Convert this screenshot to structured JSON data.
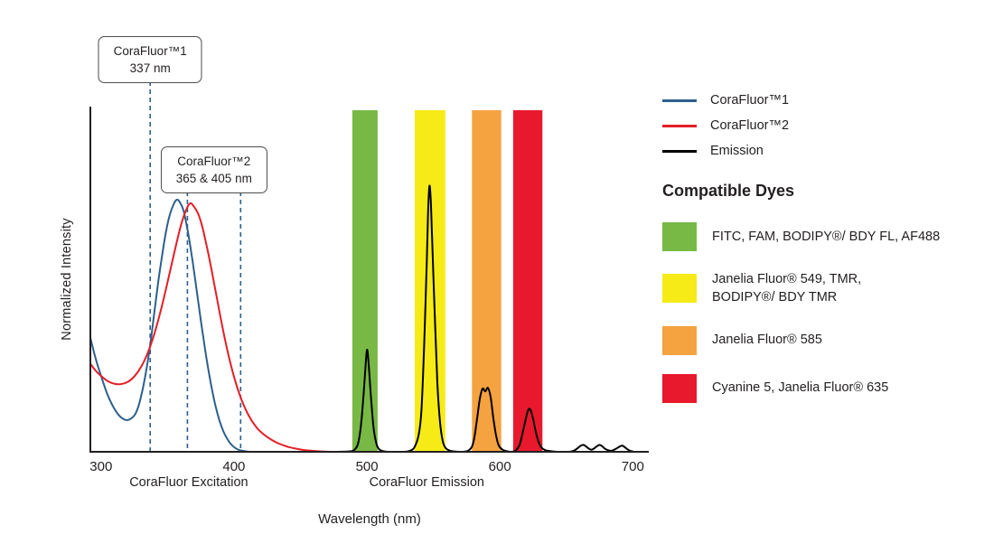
{
  "chart_data": {
    "type": "line",
    "xlabel": "Wavelength (nm)",
    "ylabel": "Normalized Intensity",
    "x_ticks": [
      300,
      400,
      500,
      600,
      700
    ],
    "x_range": [
      292,
      712
    ],
    "y_range": [
      0,
      1
    ],
    "grid": false,
    "axis_color": "#231f20",
    "marker_line_color": "#2d5f8d",
    "section_labels": [
      {
        "label": "CoraFluor Excitation",
        "center_nm": 366
      },
      {
        "label": "CoraFluor Emission",
        "center_nm": 545
      }
    ],
    "callouts": [
      {
        "line1": "CoraFluor™1",
        "line2": "337 nm",
        "lines_nm": [
          337
        ]
      },
      {
        "line1": "CoraFluor™2",
        "line2": "365 & 405 nm",
        "lines_nm": [
          365,
          405
        ]
      }
    ],
    "bands": [
      {
        "dyes": "FITC, FAM, BODIPY®/ BDY FL, AF488",
        "color": "#78b845",
        "from_nm": 489,
        "to_nm": 508
      },
      {
        "dyes": "Janelia Fluor® 549, TMR, BODIPY®/ BDY TMR",
        "color": "#f6eb16",
        "from_nm": 536,
        "to_nm": 559
      },
      {
        "dyes": "Janelia Fluor® 585",
        "color": "#f5a240",
        "from_nm": 579,
        "to_nm": 601
      },
      {
        "dyes": "Cyanine 5, Janelia Fluor® 635",
        "color": "#e8192d",
        "from_nm": 610,
        "to_nm": 632
      }
    ],
    "series": [
      {
        "name": "CoraFluor™1",
        "kind": "excitation",
        "color": "#2d5f8d",
        "points": [
          [
            292,
            0.33
          ],
          [
            296,
            0.27
          ],
          [
            300,
            0.22
          ],
          [
            305,
            0.165
          ],
          [
            310,
            0.125
          ],
          [
            315,
            0.1
          ],
          [
            320,
            0.092
          ],
          [
            325,
            0.105
          ],
          [
            328,
            0.13
          ],
          [
            331,
            0.175
          ],
          [
            334,
            0.235
          ],
          [
            337,
            0.31
          ],
          [
            340,
            0.4
          ],
          [
            343,
            0.49
          ],
          [
            346,
            0.57
          ],
          [
            349,
            0.64
          ],
          [
            352,
            0.69
          ],
          [
            355,
            0.72
          ],
          [
            357,
            0.73
          ],
          [
            359,
            0.725
          ],
          [
            362,
            0.7
          ],
          [
            365,
            0.645
          ],
          [
            368,
            0.575
          ],
          [
            371,
            0.495
          ],
          [
            374,
            0.41
          ],
          [
            377,
            0.33
          ],
          [
            380,
            0.255
          ],
          [
            383,
            0.19
          ],
          [
            386,
            0.135
          ],
          [
            389,
            0.092
          ],
          [
            392,
            0.06
          ],
          [
            395,
            0.037
          ],
          [
            398,
            0.021
          ],
          [
            401,
            0.011
          ],
          [
            404,
            0.005
          ],
          [
            408,
            0.002
          ],
          [
            412,
            0
          ]
        ]
      },
      {
        "name": "CoraFluor™2",
        "kind": "excitation",
        "color": "#e41e26",
        "points": [
          [
            292,
            0.255
          ],
          [
            296,
            0.235
          ],
          [
            300,
            0.22
          ],
          [
            305,
            0.205
          ],
          [
            310,
            0.197
          ],
          [
            315,
            0.196
          ],
          [
            320,
            0.202
          ],
          [
            325,
            0.218
          ],
          [
            330,
            0.245
          ],
          [
            335,
            0.285
          ],
          [
            340,
            0.34
          ],
          [
            345,
            0.41
          ],
          [
            350,
            0.49
          ],
          [
            355,
            0.575
          ],
          [
            360,
            0.655
          ],
          [
            364,
            0.7
          ],
          [
            367,
            0.72
          ],
          [
            370,
            0.71
          ],
          [
            373,
            0.69
          ],
          [
            376,
            0.655
          ],
          [
            379,
            0.605
          ],
          [
            382,
            0.55
          ],
          [
            385,
            0.49
          ],
          [
            388,
            0.428
          ],
          [
            391,
            0.368
          ],
          [
            394,
            0.312
          ],
          [
            397,
            0.262
          ],
          [
            400,
            0.218
          ],
          [
            403,
            0.18
          ],
          [
            406,
            0.148
          ],
          [
            409,
            0.121
          ],
          [
            412,
            0.099
          ],
          [
            415,
            0.081
          ],
          [
            418,
            0.066
          ],
          [
            421,
            0.055
          ],
          [
            425,
            0.043
          ],
          [
            429,
            0.033
          ],
          [
            433,
            0.025
          ],
          [
            437,
            0.019
          ],
          [
            441,
            0.014
          ],
          [
            447,
            0.009
          ],
          [
            453,
            0.005
          ],
          [
            459,
            0.003
          ],
          [
            466,
            0.001
          ],
          [
            473,
            0
          ]
        ]
      },
      {
        "name": "Emission",
        "kind": "emission",
        "color": "#000000",
        "points": [
          [
            478,
            0
          ],
          [
            486,
            0.001
          ],
          [
            490,
            0.004
          ],
          [
            493,
            0.02
          ],
          [
            495,
            0.06
          ],
          [
            497,
            0.14
          ],
          [
            499,
            0.25
          ],
          [
            500,
            0.295
          ],
          [
            501,
            0.27
          ],
          [
            503,
            0.16
          ],
          [
            505,
            0.07
          ],
          [
            507,
            0.025
          ],
          [
            509,
            0.008
          ],
          [
            512,
            0.002
          ],
          [
            516,
            0
          ],
          [
            528,
            0
          ],
          [
            533,
            0.004
          ],
          [
            536,
            0.015
          ],
          [
            539,
            0.05
          ],
          [
            541,
            0.12
          ],
          [
            543,
            0.3
          ],
          [
            545,
            0.55
          ],
          [
            546,
            0.69
          ],
          [
            547,
            0.77
          ],
          [
            548,
            0.73
          ],
          [
            549,
            0.62
          ],
          [
            551,
            0.4
          ],
          [
            553,
            0.2
          ],
          [
            555,
            0.085
          ],
          [
            557,
            0.032
          ],
          [
            559,
            0.012
          ],
          [
            562,
            0.004
          ],
          [
            566,
            0.001
          ],
          [
            572,
            0
          ],
          [
            576,
            0.003
          ],
          [
            579,
            0.015
          ],
          [
            581,
            0.045
          ],
          [
            583,
            0.1
          ],
          [
            585,
            0.155
          ],
          [
            587,
            0.183
          ],
          [
            589,
            0.175
          ],
          [
            591,
            0.185
          ],
          [
            593,
            0.16
          ],
          [
            595,
            0.1
          ],
          [
            597,
            0.05
          ],
          [
            599,
            0.02
          ],
          [
            602,
            0.006
          ],
          [
            606,
            0.001
          ],
          [
            609,
            0
          ],
          [
            612,
            0.004
          ],
          [
            615,
            0.022
          ],
          [
            618,
            0.07
          ],
          [
            621,
            0.118
          ],
          [
            623,
            0.122
          ],
          [
            625,
            0.095
          ],
          [
            627,
            0.058
          ],
          [
            629,
            0.03
          ],
          [
            631,
            0.014
          ],
          [
            634,
            0.005
          ],
          [
            638,
            0.002
          ],
          [
            643,
            0
          ],
          [
            652,
            0
          ],
          [
            656,
            0.004
          ],
          [
            659,
            0.012
          ],
          [
            661,
            0.018
          ],
          [
            663,
            0.02
          ],
          [
            665,
            0.015
          ],
          [
            667,
            0.009
          ],
          [
            669,
            0.006
          ],
          [
            671,
            0.01
          ],
          [
            673,
            0.016
          ],
          [
            675,
            0.02
          ],
          [
            677,
            0.016
          ],
          [
            679,
            0.009
          ],
          [
            681,
            0.005
          ],
          [
            684,
            0.003
          ],
          [
            687,
            0.008
          ],
          [
            690,
            0.015
          ],
          [
            692,
            0.018
          ],
          [
            694,
            0.013
          ],
          [
            696,
            0.007
          ],
          [
            698,
            0.003
          ],
          [
            700,
            0.001
          ]
        ]
      }
    ]
  },
  "legend": {
    "entries": [
      {
        "label": "CoraFluor™1",
        "color": "#2d5f8d"
      },
      {
        "label": "CoraFluor™2",
        "color": "#e41e26"
      },
      {
        "label": "Emission",
        "color": "#000000"
      }
    ],
    "dyes_title": "Compatible Dyes",
    "dyes": [
      {
        "color": "#78b845",
        "label": "FITC, FAM, BODIPY®/ BDY FL, AF488"
      },
      {
        "color": "#f6eb16",
        "label": "Janelia Fluor® 549, TMR,\nBODIPY®/ BDY TMR"
      },
      {
        "color": "#f5a240",
        "label": "Janelia Fluor® 585"
      },
      {
        "color": "#e8192d",
        "label": "Cyanine 5, Janelia Fluor® 635"
      }
    ]
  }
}
